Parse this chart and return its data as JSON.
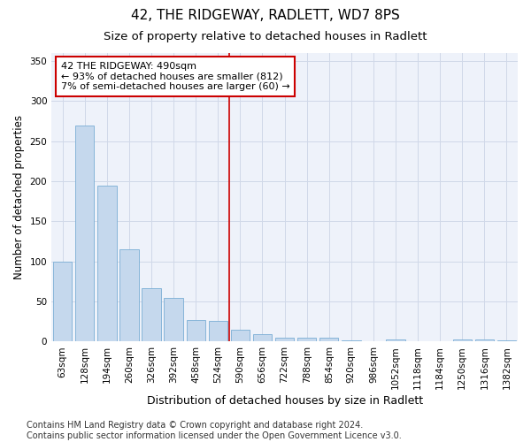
{
  "title": "42, THE RIDGEWAY, RADLETT, WD7 8PS",
  "subtitle": "Size of property relative to detached houses in Radlett",
  "xlabel": "Distribution of detached houses by size in Radlett",
  "ylabel": "Number of detached properties",
  "categories": [
    "63sqm",
    "128sqm",
    "194sqm",
    "260sqm",
    "326sqm",
    "392sqm",
    "458sqm",
    "524sqm",
    "590sqm",
    "656sqm",
    "722sqm",
    "788sqm",
    "854sqm",
    "920sqm",
    "986sqm",
    "1052sqm",
    "1118sqm",
    "1184sqm",
    "1250sqm",
    "1316sqm",
    "1382sqm"
  ],
  "values": [
    100,
    270,
    195,
    115,
    67,
    54,
    27,
    26,
    15,
    9,
    5,
    5,
    5,
    2,
    0,
    3,
    0,
    0,
    3,
    3,
    2
  ],
  "bar_color": "#c5d8ed",
  "bar_edge_color": "#7aaed4",
  "grid_color": "#d0d8e8",
  "background_color": "#eef2fa",
  "vline_x": 7.5,
  "vline_color": "#cc0000",
  "annotation_line1": "42 THE RIDGEWAY: 490sqm",
  "annotation_line2": "← 93% of detached houses are smaller (812)",
  "annotation_line3": "7% of semi-detached houses are larger (60) →",
  "annotation_box_color": "#cc0000",
  "ylim": [
    0,
    360
  ],
  "yticks": [
    0,
    50,
    100,
    150,
    200,
    250,
    300,
    350
  ],
  "footer_text": "Contains HM Land Registry data © Crown copyright and database right 2024.\nContains public sector information licensed under the Open Government Licence v3.0.",
  "title_fontsize": 11,
  "subtitle_fontsize": 9.5,
  "xlabel_fontsize": 9,
  "ylabel_fontsize": 8.5,
  "tick_fontsize": 7.5,
  "annotation_fontsize": 8,
  "footer_fontsize": 7
}
